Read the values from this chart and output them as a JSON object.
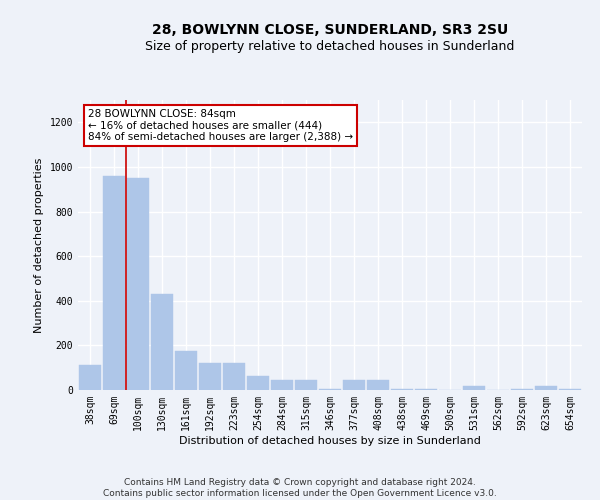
{
  "title1": "28, BOWLYNN CLOSE, SUNDERLAND, SR3 2SU",
  "title2": "Size of property relative to detached houses in Sunderland",
  "xlabel": "Distribution of detached houses by size in Sunderland",
  "ylabel": "Number of detached properties",
  "categories": [
    "38sqm",
    "69sqm",
    "100sqm",
    "130sqm",
    "161sqm",
    "192sqm",
    "223sqm",
    "254sqm",
    "284sqm",
    "315sqm",
    "346sqm",
    "377sqm",
    "408sqm",
    "438sqm",
    "469sqm",
    "500sqm",
    "531sqm",
    "562sqm",
    "592sqm",
    "623sqm",
    "654sqm"
  ],
  "values": [
    110,
    960,
    950,
    430,
    175,
    120,
    120,
    65,
    45,
    45,
    5,
    45,
    45,
    5,
    5,
    0,
    20,
    0,
    5,
    20,
    5
  ],
  "bar_color": "#aec6e8",
  "bar_edge_color": "#aec6e8",
  "vline_color": "#cc0000",
  "vline_x": 1.5,
  "annotation_text": "28 BOWLYNN CLOSE: 84sqm\n← 16% of detached houses are smaller (444)\n84% of semi-detached houses are larger (2,388) →",
  "annotation_box_color": "#ffffff",
  "annotation_box_edge": "#cc0000",
  "ylim": [
    0,
    1300
  ],
  "yticks": [
    0,
    200,
    400,
    600,
    800,
    1000,
    1200
  ],
  "footer": "Contains HM Land Registry data © Crown copyright and database right 2024.\nContains public sector information licensed under the Open Government Licence v3.0.",
  "bg_color": "#eef2f9",
  "plot_bg_color": "#eef2f9",
  "grid_color": "#ffffff",
  "title_fontsize": 10,
  "subtitle_fontsize": 9,
  "axis_label_fontsize": 8,
  "tick_fontsize": 7,
  "footer_fontsize": 6.5,
  "annotation_fontsize": 7.5
}
